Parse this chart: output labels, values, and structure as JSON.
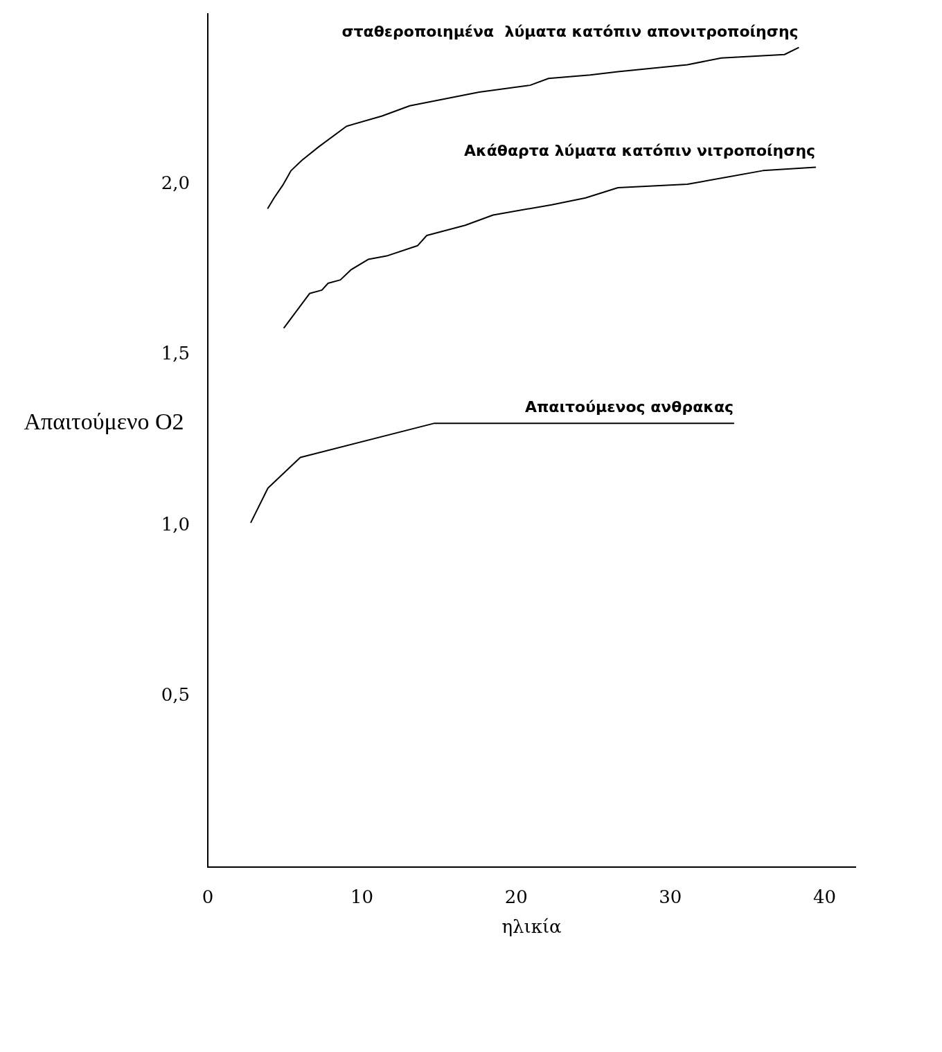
{
  "chart_data": {
    "type": "line",
    "ylabel": "Απαιτούμενο O2",
    "xlabel": "ηλικία",
    "xlim": [
      0,
      42
    ],
    "xticks": [
      0,
      10,
      20,
      30,
      40
    ],
    "ylim": [
      0,
      2.5
    ],
    "yticks": [
      {
        "value": 0.5,
        "label": "0,5"
      },
      {
        "value": 1,
        "label": "1,0"
      },
      {
        "value": 1.5,
        "label": "1,5"
      },
      {
        "value": 2,
        "label": "2,0"
      }
    ],
    "grid": false,
    "legend": false,
    "marker": "none",
    "line_style": "solid",
    "series": [
      {
        "name": "σταθεροποιημένα  λύματα κατόπιν απονιτροποίησης",
        "color": "#000000",
        "x": [
          3.9,
          4.3,
          4.9,
          5.4,
          6.1,
          7.2,
          9.0,
          11.3,
          13.1,
          17.6,
          20.9,
          22.1,
          24.8,
          26.6,
          31.1,
          33.3,
          37.4,
          38.3
        ],
        "values": [
          1.93,
          1.96,
          2.0,
          2.04,
          2.07,
          2.11,
          2.17,
          2.2,
          2.23,
          2.27,
          2.29,
          2.31,
          2.32,
          2.33,
          2.35,
          2.37,
          2.38,
          2.4
        ]
      },
      {
        "name": "Ακάθαρτα λύματα κατόπιν νιτροποίησης",
        "color": "#000000",
        "x": [
          4.95,
          6.6,
          7.4,
          7.8,
          8.6,
          9.3,
          10.4,
          11.6,
          13.6,
          14.2,
          16.7,
          18.5,
          22.3,
          24.5,
          26.6,
          31.1,
          36.0,
          39.4
        ],
        "values": [
          1.58,
          1.68,
          1.69,
          1.71,
          1.72,
          1.75,
          1.78,
          1.79,
          1.82,
          1.85,
          1.88,
          1.91,
          1.94,
          1.96,
          1.99,
          2.0,
          2.04,
          2.05
        ]
      },
      {
        "name": "Απαιτούμενος ανθρακας",
        "color": "#000000",
        "x": [
          2.8,
          3.9,
          6.0,
          14.7,
          34.1
        ],
        "values": [
          1.01,
          1.11,
          1.2,
          1.3,
          1.3
        ]
      }
    ]
  }
}
